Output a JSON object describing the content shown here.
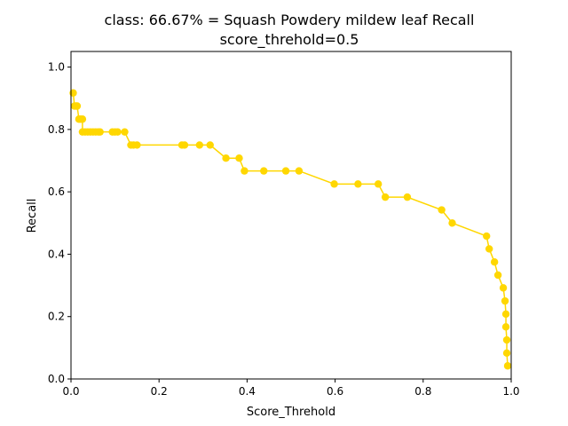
{
  "chart_data": {
    "type": "line",
    "title_line1": "class: 66.67% = Squash Powdery mildew leaf Recall",
    "title_line2": "score_threhold=0.5",
    "xlabel": "Score_Threhold",
    "ylabel": "Recall",
    "xlim": [
      0.0,
      1.0
    ],
    "ylim": [
      0.0,
      1.05
    ],
    "xticks": [
      "0.0",
      "0.2",
      "0.4",
      "0.6",
      "0.8",
      "1.0"
    ],
    "yticks": [
      "0.0",
      "0.2",
      "0.4",
      "0.6",
      "0.8",
      "1.0"
    ],
    "grid": false,
    "series": [
      {
        "name": "Recall",
        "color": "#FFD700",
        "x": [
          0.005,
          0.008,
          0.012,
          0.014,
          0.018,
          0.022,
          0.026,
          0.026,
          0.032,
          0.038,
          0.044,
          0.05,
          0.056,
          0.062,
          0.066,
          0.094,
          0.1,
          0.106,
          0.122,
          0.136,
          0.142,
          0.15,
          0.252,
          0.258,
          0.292,
          0.316,
          0.352,
          0.382,
          0.394,
          0.438,
          0.488,
          0.518,
          0.598,
          0.652,
          0.698,
          0.714,
          0.764,
          0.842,
          0.866,
          0.944,
          0.95,
          0.962,
          0.97,
          0.982,
          0.986,
          0.988,
          0.988,
          0.99,
          0.99,
          0.992
        ],
        "y": [
          0.917,
          0.875,
          0.875,
          0.875,
          0.833,
          0.833,
          0.833,
          0.792,
          0.792,
          0.792,
          0.792,
          0.792,
          0.792,
          0.792,
          0.792,
          0.792,
          0.792,
          0.792,
          0.792,
          0.75,
          0.75,
          0.75,
          0.75,
          0.75,
          0.75,
          0.75,
          0.708,
          0.708,
          0.667,
          0.667,
          0.667,
          0.667,
          0.625,
          0.625,
          0.625,
          0.583,
          0.583,
          0.542,
          0.5,
          0.458,
          0.417,
          0.375,
          0.333,
          0.292,
          0.25,
          0.208,
          0.167,
          0.125,
          0.083,
          0.042
        ]
      }
    ]
  }
}
